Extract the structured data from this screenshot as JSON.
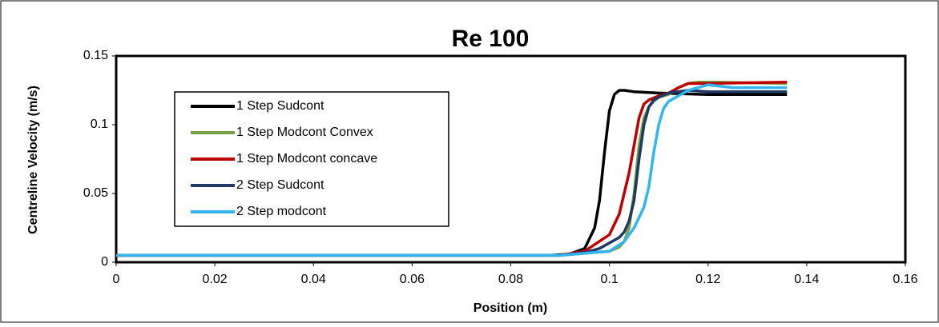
{
  "chart_data": {
    "type": "line",
    "title": "Re 100",
    "xlabel": "Position (m)",
    "ylabel": "Centreline Velocity (m/s)",
    "xlim": [
      0,
      0.16
    ],
    "xticks": [
      0,
      0.02,
      0.04,
      0.06,
      0.08,
      0.1,
      0.12,
      0.14,
      0.16
    ],
    "ylim": [
      0,
      0.15
    ],
    "yticks": [
      0,
      0.05,
      0.1,
      0.15
    ],
    "grid": false,
    "legend": "upper left",
    "series": [
      {
        "name": "1 Step Sudcont",
        "color": "#000000",
        "x": [
          0,
          0.02,
          0.04,
          0.06,
          0.08,
          0.088,
          0.092,
          0.095,
          0.097,
          0.098,
          0.099,
          0.1,
          0.101,
          0.102,
          0.103,
          0.105,
          0.11,
          0.12,
          0.136
        ],
        "values": [
          0.005,
          0.005,
          0.005,
          0.005,
          0.005,
          0.005,
          0.006,
          0.01,
          0.025,
          0.045,
          0.08,
          0.11,
          0.122,
          0.125,
          0.125,
          0.124,
          0.123,
          0.122,
          0.122
        ]
      },
      {
        "name": "1 Step Modcont Convex",
        "color": "#77a046",
        "x": [
          0,
          0.02,
          0.04,
          0.06,
          0.08,
          0.09,
          0.1,
          0.102,
          0.103,
          0.104,
          0.105,
          0.106,
          0.107,
          0.108,
          0.109,
          0.11,
          0.112,
          0.114,
          0.116,
          0.118,
          0.12,
          0.136
        ],
        "values": [
          0.005,
          0.005,
          0.005,
          0.005,
          0.005,
          0.005,
          0.008,
          0.011,
          0.015,
          0.025,
          0.05,
          0.085,
          0.105,
          0.113,
          0.117,
          0.12,
          0.122,
          0.127,
          0.13,
          0.131,
          0.131,
          0.13
        ]
      },
      {
        "name": "1 Step Modcont concave",
        "color": "#c00000",
        "x": [
          0,
          0.02,
          0.04,
          0.06,
          0.08,
          0.09,
          0.095,
          0.1,
          0.102,
          0.104,
          0.105,
          0.106,
          0.107,
          0.108,
          0.11,
          0.112,
          0.114,
          0.116,
          0.12,
          0.136
        ],
        "values": [
          0.005,
          0.005,
          0.005,
          0.005,
          0.005,
          0.005,
          0.008,
          0.02,
          0.035,
          0.065,
          0.085,
          0.105,
          0.115,
          0.118,
          0.121,
          0.123,
          0.127,
          0.13,
          0.13,
          0.131
        ]
      },
      {
        "name": "2 Step Sudcont",
        "color": "#1f3864",
        "x": [
          0,
          0.02,
          0.04,
          0.06,
          0.08,
          0.09,
          0.095,
          0.098,
          0.1,
          0.102,
          0.103,
          0.104,
          0.105,
          0.106,
          0.107,
          0.108,
          0.109,
          0.11,
          0.112,
          0.116,
          0.12,
          0.125,
          0.136
        ],
        "values": [
          0.005,
          0.005,
          0.005,
          0.005,
          0.005,
          0.005,
          0.007,
          0.01,
          0.014,
          0.018,
          0.022,
          0.03,
          0.045,
          0.075,
          0.1,
          0.113,
          0.118,
          0.12,
          0.123,
          0.125,
          0.124,
          0.124,
          0.124
        ]
      },
      {
        "name": "2 Step modcont",
        "color": "#33b5f0",
        "x": [
          0,
          0.02,
          0.04,
          0.06,
          0.08,
          0.09,
          0.1,
          0.103,
          0.105,
          0.107,
          0.108,
          0.109,
          0.11,
          0.111,
          0.112,
          0.114,
          0.116,
          0.118,
          0.12,
          0.125,
          0.13,
          0.136
        ],
        "values": [
          0.005,
          0.005,
          0.005,
          0.005,
          0.005,
          0.005,
          0.008,
          0.015,
          0.025,
          0.04,
          0.055,
          0.08,
          0.1,
          0.112,
          0.117,
          0.121,
          0.125,
          0.127,
          0.129,
          0.127,
          0.127,
          0.127
        ]
      }
    ]
  }
}
